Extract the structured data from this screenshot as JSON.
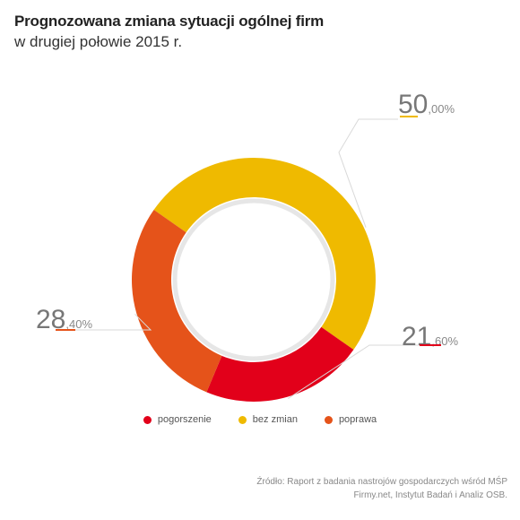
{
  "header": {
    "title": "Prognozowana zmiana sytuacji ogólnej firm",
    "subtitle": "w drugiej połowie 2015 r."
  },
  "chart_data": {
    "type": "pie",
    "variant": "donut",
    "categories": [
      "pogorszenie",
      "bez zmian",
      "poprawa"
    ],
    "values": [
      21.6,
      50.0,
      28.4
    ],
    "unit": "%",
    "labels": [
      {
        "big": "21",
        "small": ",60%"
      },
      {
        "big": "50",
        "small": ",00%"
      },
      {
        "big": "28",
        "small": ",40%"
      }
    ],
    "colors": [
      "#e2001a",
      "#efba00",
      "#e5531a"
    ],
    "legend_position": "bottom"
  },
  "legend": [
    {
      "label": "pogorszenie",
      "color": "#e2001a"
    },
    {
      "label": "bez zmian",
      "color": "#efba00"
    },
    {
      "label": "poprawa",
      "color": "#e5531a"
    }
  ],
  "source": {
    "line1": "Źródło: Raport z badania nastrojów gospodarczych wśród MŚP",
    "line2": "Firmy.net, Instytut Badań i Analiz OSB."
  }
}
